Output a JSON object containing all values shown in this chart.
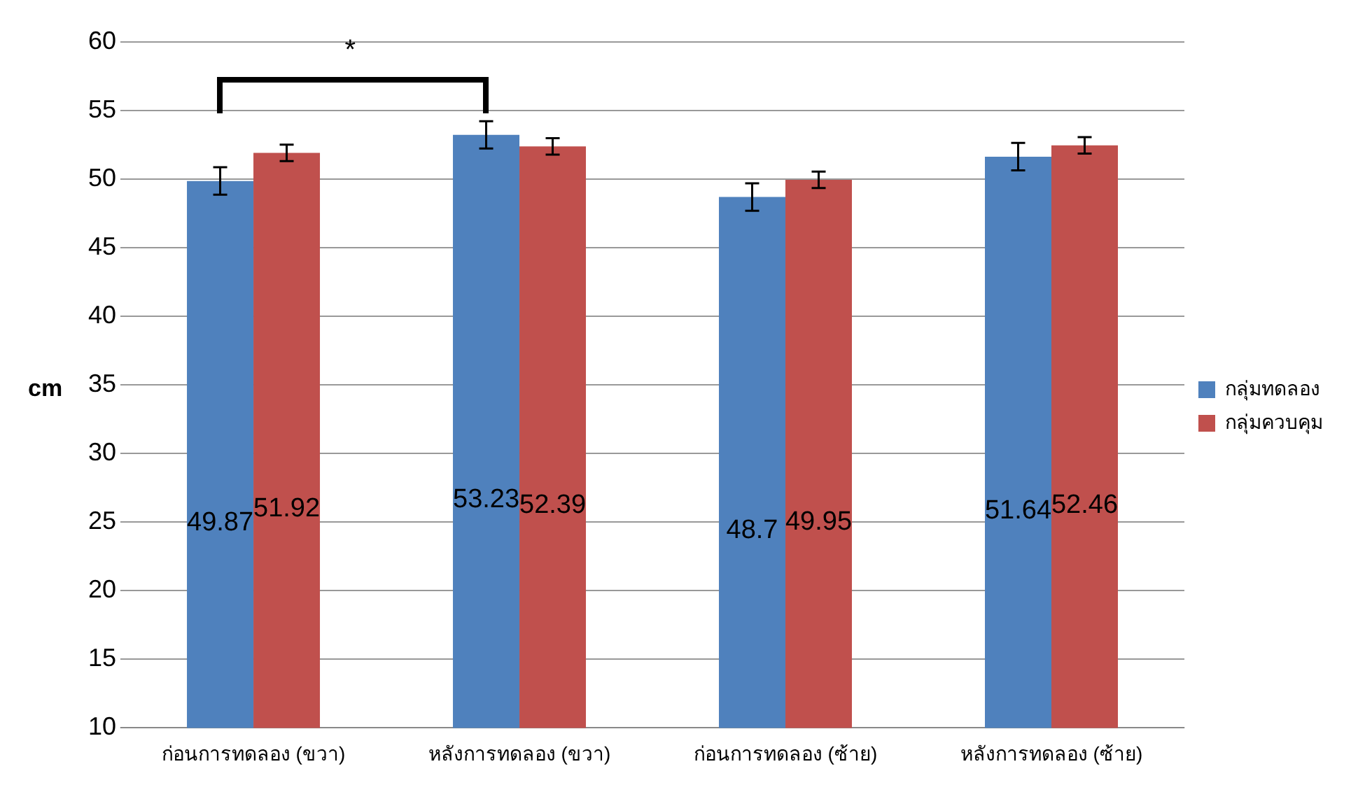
{
  "chart_data": {
    "type": "bar",
    "ylabel": "cm",
    "categories": [
      "ก่อนการทดลอง (ขวา)",
      "หลังการทดลอง (ขวา)",
      "ก่อนการทดลอง (ซ้าย)",
      "หลังการทดลอง (ซ้าย)"
    ],
    "series": [
      {
        "name": "กลุ่มทดลอง",
        "color": "#4f81bd",
        "values": [
          49.87,
          53.23,
          48.7,
          51.64
        ],
        "errors": [
          1.0,
          1.0,
          1.0,
          1.0
        ]
      },
      {
        "name": "กลุ่มควบคุม",
        "color": "#c0504d",
        "values": [
          51.92,
          52.39,
          49.95,
          52.46
        ],
        "errors": [
          0.6,
          0.6,
          0.6,
          0.6
        ]
      }
    ],
    "ylim": [
      10,
      60
    ],
    "yticks": [
      10,
      15,
      20,
      25,
      30,
      35,
      40,
      45,
      50,
      55,
      60
    ],
    "grid": "y",
    "legend": "right",
    "data_labels": true,
    "annotations": [
      "*"
    ]
  }
}
